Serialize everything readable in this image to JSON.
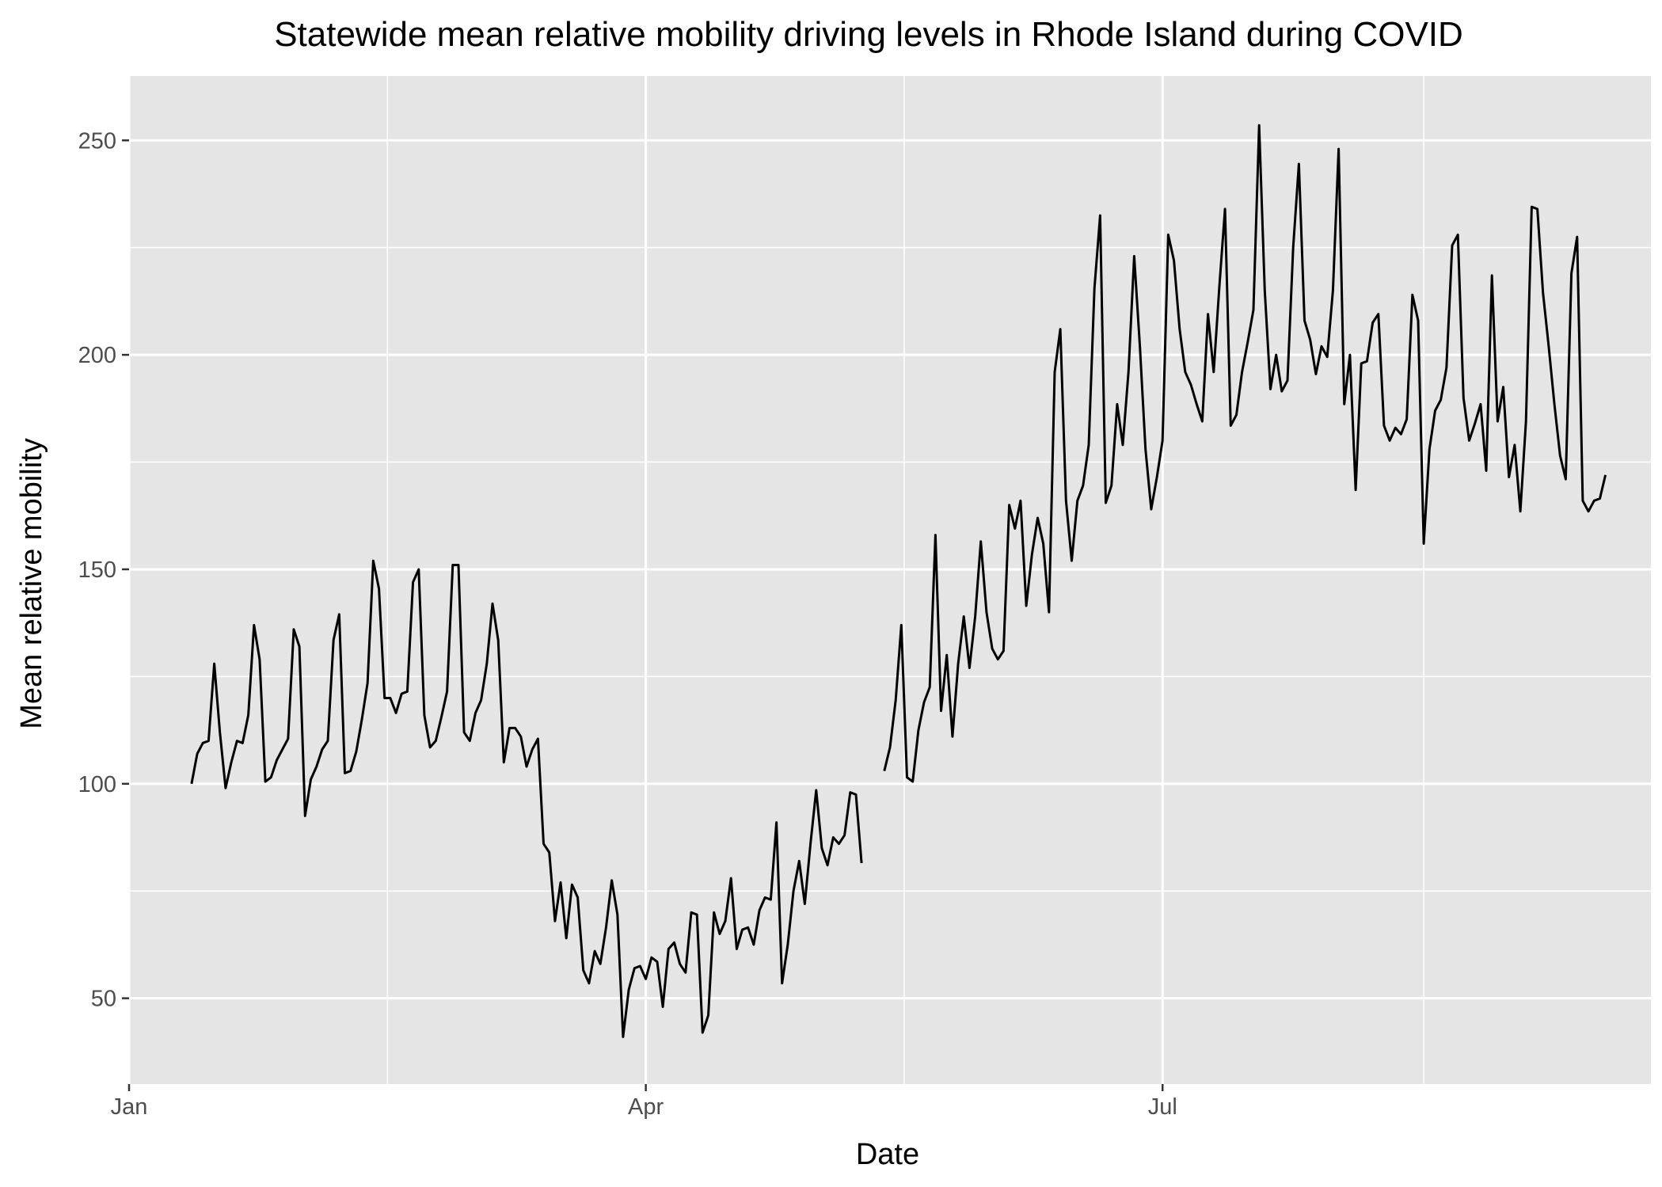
{
  "chart_data": {
    "type": "line",
    "title": "Statewide mean relative mobility driving levels in Rhode Island during COVID",
    "xlabel": "Date",
    "ylabel": "Mean relative mobility",
    "x_ticks": [
      {
        "label": "Jan",
        "day": 0
      },
      {
        "label": "Apr",
        "day": 91
      },
      {
        "label": "Jul",
        "day": 182
      }
    ],
    "x_minor_days": [
      45.5,
      136.5,
      228
    ],
    "y_ticks": [
      50,
      100,
      150,
      200,
      250
    ],
    "y_minor": [
      75,
      125,
      175,
      225
    ],
    "xlim": [
      0,
      268
    ],
    "ylim": [
      30,
      265
    ],
    "grid": true,
    "line_color": "#000000",
    "panel_color": "#e5e5e5",
    "series": [
      {
        "values": [
          [
            11,
            100
          ],
          [
            12,
            107
          ],
          [
            13,
            109.5
          ],
          [
            14,
            110
          ],
          [
            15,
            128
          ],
          [
            16,
            112
          ],
          [
            17,
            99
          ],
          [
            18,
            105
          ],
          [
            19,
            110
          ],
          [
            20,
            109.5
          ],
          [
            21,
            116
          ],
          [
            22,
            137
          ],
          [
            23,
            129
          ],
          [
            24,
            100.5
          ],
          [
            25,
            101.5
          ],
          [
            26,
            105.5
          ],
          [
            27,
            108
          ],
          [
            28,
            110.5
          ],
          [
            29,
            136
          ],
          [
            30,
            132
          ],
          [
            31,
            92.5
          ],
          [
            32,
            101
          ],
          [
            33,
            104
          ],
          [
            34,
            108
          ],
          [
            35,
            110
          ],
          [
            36,
            133.5
          ],
          [
            37,
            139.5
          ],
          [
            38,
            102.5
          ],
          [
            39,
            103
          ],
          [
            40,
            107.5
          ],
          [
            41,
            115
          ],
          [
            42,
            123.5
          ],
          [
            43,
            152
          ],
          [
            44,
            145.5
          ],
          [
            45,
            120
          ],
          [
            46,
            120
          ],
          [
            47,
            116.5
          ],
          [
            48,
            121
          ],
          [
            49,
            121.5
          ],
          [
            50,
            147
          ],
          [
            51,
            150
          ],
          [
            52,
            116
          ],
          [
            53,
            108.5
          ],
          [
            54,
            110
          ],
          [
            55,
            115.5
          ],
          [
            56,
            121.5
          ],
          [
            57,
            151
          ],
          [
            58,
            151
          ],
          [
            59,
            112
          ],
          [
            60,
            110
          ],
          [
            61,
            116.5
          ],
          [
            62,
            119.5
          ],
          [
            63,
            128
          ],
          [
            64,
            142
          ],
          [
            65,
            133.5
          ],
          [
            66,
            105
          ],
          [
            67,
            113
          ],
          [
            68,
            113
          ],
          [
            69,
            111
          ],
          [
            70,
            104
          ],
          [
            71,
            108
          ],
          [
            72,
            110.5
          ],
          [
            73,
            86
          ],
          [
            74,
            84
          ],
          [
            75,
            68
          ],
          [
            76,
            77
          ],
          [
            77,
            64
          ],
          [
            78,
            76.5
          ],
          [
            79,
            73.5
          ],
          [
            80,
            56.5
          ],
          [
            81,
            53.5
          ],
          [
            82,
            61
          ],
          [
            83,
            58
          ],
          [
            84,
            66.5
          ],
          [
            85,
            77.5
          ],
          [
            86,
            69.5
          ],
          [
            87,
            41
          ],
          [
            88,
            52
          ],
          [
            89,
            57
          ],
          [
            90,
            57.5
          ],
          [
            91,
            54.5
          ],
          [
            92,
            59.5
          ],
          [
            93,
            58.5
          ],
          [
            94,
            48
          ],
          [
            95,
            61.5
          ],
          [
            96,
            63
          ],
          [
            97,
            58
          ],
          [
            98,
            56
          ],
          [
            99,
            70
          ],
          [
            100,
            69.5
          ],
          [
            101,
            42
          ],
          [
            102,
            46
          ],
          [
            103,
            70
          ],
          [
            104,
            65
          ],
          [
            105,
            68
          ],
          [
            106,
            78
          ],
          [
            107,
            61.5
          ],
          [
            108,
            66
          ],
          [
            109,
            66.5
          ],
          [
            110,
            62.5
          ],
          [
            111,
            70.5
          ],
          [
            112,
            73.5
          ],
          [
            113,
            73
          ],
          [
            114,
            91
          ],
          [
            115,
            53.5
          ],
          [
            116,
            62.5
          ],
          [
            117,
            75
          ],
          [
            118,
            82
          ],
          [
            119,
            72
          ],
          [
            120,
            86
          ],
          [
            121,
            98.5
          ],
          [
            122,
            85
          ],
          [
            123,
            81
          ],
          [
            124,
            87.5
          ],
          [
            125,
            86
          ],
          [
            126,
            88
          ],
          [
            127,
            98
          ],
          [
            128,
            97.5
          ],
          [
            129,
            81.5
          ],
          null,
          null,
          null,
          [
            133,
            103
          ],
          [
            134,
            108.5
          ],
          [
            135,
            119.5
          ],
          [
            136,
            137
          ],
          [
            137,
            101.5
          ],
          [
            138,
            100.5
          ],
          [
            139,
            112.5
          ],
          [
            140,
            119
          ],
          [
            141,
            122.5
          ],
          [
            142,
            158
          ],
          [
            143,
            117
          ],
          [
            144,
            130
          ],
          [
            145,
            111
          ],
          [
            146,
            128
          ],
          [
            147,
            139
          ],
          [
            148,
            127
          ],
          [
            149,
            139
          ],
          [
            150,
            156.5
          ],
          [
            151,
            140
          ],
          [
            152,
            131.5
          ],
          [
            153,
            129
          ],
          [
            154,
            131
          ],
          [
            155,
            165
          ],
          [
            156,
            159.5
          ],
          [
            157,
            166
          ],
          [
            158,
            141.5
          ],
          [
            159,
            153.5
          ],
          [
            160,
            162
          ],
          [
            161,
            156
          ],
          [
            162,
            140
          ],
          [
            163,
            196
          ],
          [
            164,
            206
          ],
          [
            165,
            166
          ],
          [
            166,
            152
          ],
          [
            167,
            166
          ],
          [
            168,
            169.5
          ],
          [
            169,
            179
          ],
          [
            170,
            215.5
          ],
          [
            171,
            232.5
          ],
          [
            172,
            165.5
          ],
          [
            173,
            169.5
          ],
          [
            174,
            188.5
          ],
          [
            175,
            179
          ],
          [
            176,
            196
          ],
          [
            177,
            223
          ],
          [
            178,
            202
          ],
          [
            179,
            178
          ],
          [
            180,
            164
          ],
          [
            181,
            171.5
          ],
          [
            182,
            180
          ],
          [
            183,
            228
          ],
          [
            184,
            222
          ],
          [
            185,
            206
          ],
          [
            186,
            196
          ],
          [
            187,
            193
          ],
          [
            188,
            188.5
          ],
          [
            189,
            184.5
          ],
          [
            190,
            209.5
          ],
          [
            191,
            196
          ],
          [
            192,
            216
          ],
          [
            193,
            234
          ],
          [
            194,
            183.5
          ],
          [
            195,
            186
          ],
          [
            196,
            196
          ],
          [
            197,
            203
          ],
          [
            198,
            210.5
          ],
          [
            199,
            253.5
          ],
          [
            200,
            215
          ],
          [
            201,
            192
          ],
          [
            202,
            200
          ],
          [
            203,
            191.5
          ],
          [
            204,
            194
          ],
          [
            205,
            225
          ],
          [
            206,
            244.5
          ],
          [
            207,
            208
          ],
          [
            208,
            203.5
          ],
          [
            209,
            195.5
          ],
          [
            210,
            202
          ],
          [
            211,
            199.5
          ],
          [
            212,
            215
          ],
          [
            213,
            248
          ],
          [
            214,
            188.5
          ],
          [
            215,
            200
          ],
          [
            216,
            168.5
          ],
          [
            217,
            198
          ],
          [
            218,
            198.5
          ],
          [
            219,
            207.5
          ],
          [
            220,
            209.5
          ],
          [
            221,
            183.5
          ],
          [
            222,
            180
          ],
          [
            223,
            183
          ],
          [
            224,
            181.5
          ],
          [
            225,
            185
          ],
          [
            226,
            214
          ],
          [
            227,
            208
          ],
          [
            228,
            156
          ],
          [
            229,
            178
          ],
          [
            230,
            187
          ],
          [
            231,
            189.5
          ],
          [
            232,
            197
          ],
          [
            233,
            225.5
          ],
          [
            234,
            228
          ],
          [
            235,
            190
          ],
          [
            236,
            180
          ],
          [
            237,
            184
          ],
          [
            238,
            188.5
          ],
          [
            239,
            173
          ],
          [
            240,
            218.5
          ],
          [
            241,
            184.5
          ],
          [
            242,
            192.5
          ],
          [
            243,
            171.5
          ],
          [
            244,
            179
          ],
          [
            245,
            163.5
          ],
          [
            246,
            184.5
          ],
          [
            247,
            234.5
          ],
          [
            248,
            234
          ],
          [
            249,
            214.5
          ],
          [
            250,
            202
          ],
          [
            251,
            188.5
          ],
          [
            252,
            176.5
          ],
          [
            253,
            171
          ],
          [
            254,
            219
          ],
          [
            255,
            227.5
          ],
          [
            256,
            166
          ],
          [
            257,
            163.5
          ],
          [
            258,
            166
          ],
          [
            259,
            166.5
          ],
          [
            260,
            172
          ]
        ]
      }
    ]
  }
}
